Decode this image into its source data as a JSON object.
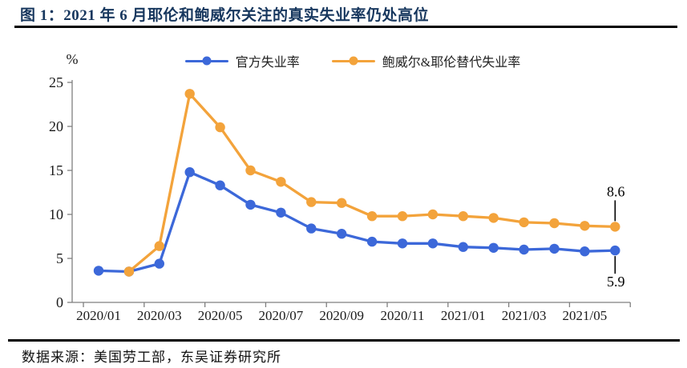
{
  "header": {
    "title": "图 1：2021 年 6 月耶伦和鲍威尔关注的真实失业率仍处高位"
  },
  "chart_data": {
    "type": "line",
    "ylabel": "%",
    "ylim": [
      0,
      25
    ],
    "yticks": [
      0,
      5,
      10,
      15,
      20,
      25
    ],
    "xtick_every": 2,
    "legend_position": "top",
    "grid": false,
    "categories": [
      "2020/01",
      "2020/02",
      "2020/03",
      "2020/04",
      "2020/05",
      "2020/06",
      "2020/07",
      "2020/08",
      "2020/09",
      "2020/10",
      "2020/11",
      "2020/12",
      "2021/01",
      "2021/02",
      "2021/03",
      "2021/04",
      "2021/05",
      "2021/06"
    ],
    "series": [
      {
        "name": "官方失业率",
        "color": "#3C68D9",
        "values": [
          3.6,
          3.5,
          4.4,
          14.8,
          13.3,
          11.1,
          10.2,
          8.4,
          7.8,
          6.9,
          6.7,
          6.7,
          6.3,
          6.2,
          6.0,
          6.1,
          5.8,
          5.9
        ]
      },
      {
        "name": "鲍威尔&耶伦替代失业率",
        "color": "#F3A33B",
        "values": [
          null,
          3.5,
          6.4,
          23.7,
          19.9,
          15.0,
          13.7,
          11.4,
          11.3,
          9.8,
          9.8,
          10.0,
          9.8,
          9.6,
          9.1,
          9.0,
          8.7,
          8.6
        ]
      }
    ],
    "annotations": [
      {
        "text": "8.6",
        "series": 1,
        "index": 17,
        "placement": "above"
      },
      {
        "text": "5.9",
        "series": 0,
        "index": 17,
        "placement": "below"
      }
    ],
    "axis_color": "#7f7f7f",
    "text_color": "#1a1a1a"
  },
  "footer": {
    "source": "数据来源：美国劳工部，东吴证券研究所"
  }
}
